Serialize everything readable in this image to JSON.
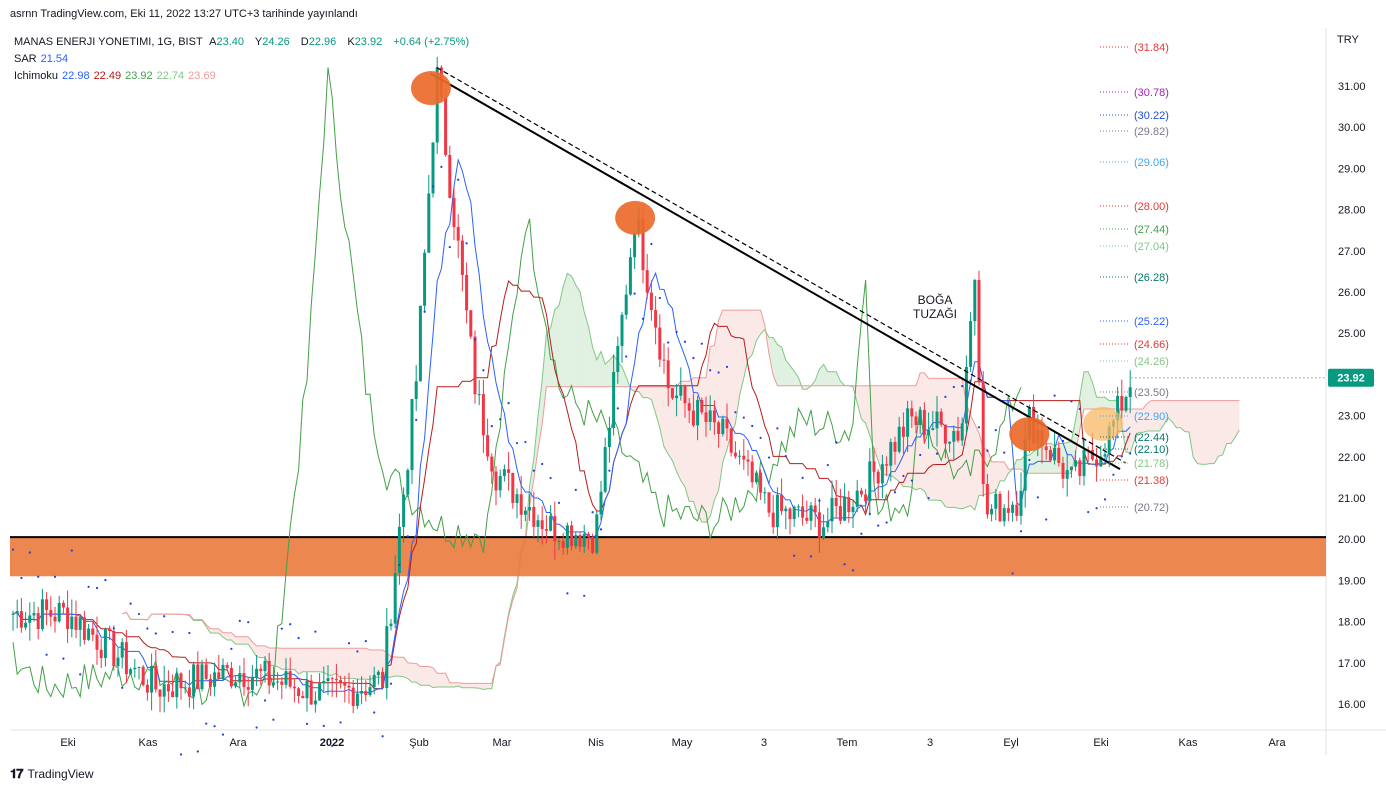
{
  "header": {
    "published": "asrnn TradingView.com, Eki 11, 2022 13:27 UTC+3 tarihinde yayınlandı"
  },
  "legend": {
    "symbol": "MANAS ENERJI YONETIMI, 1G, BIST",
    "ohlc": {
      "A": "23.40",
      "Y": "24.26",
      "D": "22.96",
      "K": "23.92",
      "change": "+0.64 (+2.75%)"
    },
    "indicators": [
      {
        "name": "SAR",
        "values": [
          "21.54"
        ],
        "colors": [
          "#2962ff"
        ]
      },
      {
        "name": "Ichimoku",
        "values": [
          "22.98",
          "22.49",
          "23.92",
          "22.74",
          "23.69"
        ],
        "colors": [
          "#2962ff",
          "#b71c1c",
          "#43a047",
          "#81c784",
          "#ef9a9a"
        ]
      }
    ]
  },
  "axis": {
    "currency": "TRY",
    "y_ticks": [
      "31.00",
      "30.00",
      "29.00",
      "28.00",
      "27.00",
      "26.00",
      "25.00",
      "24.00",
      "23.00",
      "22.00",
      "21.00",
      "20.00",
      "19.00",
      "18.00",
      "17.00",
      "16.00"
    ],
    "x_ticks": [
      "Eki",
      "Kas",
      "Ara",
      "2022",
      "Şub",
      "Mar",
      "Nis",
      "May",
      "3",
      "Tem",
      "3",
      "Eyl",
      "Eki",
      "Kas",
      "Ara"
    ]
  },
  "price_labels": [
    {
      "value": "(31.84)",
      "color": "#e53935"
    },
    {
      "value": "(30.78)",
      "color": "#9c27b0"
    },
    {
      "value": "(30.22)",
      "color": "#1e4fd8"
    },
    {
      "value": "(29.82)",
      "color": "#787b86"
    },
    {
      "value": "(29.06)",
      "color": "#42a5f5"
    },
    {
      "value": "(28.00)",
      "color": "#e53935"
    },
    {
      "value": "(27.44)",
      "color": "#43a047"
    },
    {
      "value": "(27.04)",
      "color": "#81c784"
    },
    {
      "value": "(26.28)",
      "color": "#00796b"
    },
    {
      "value": "(25.22)",
      "color": "#2962ff"
    },
    {
      "value": "(24.66)",
      "color": "#e53935"
    },
    {
      "value": "(24.26)",
      "color": "#81c784"
    },
    {
      "value": "(23.50)",
      "color": "#787b86"
    },
    {
      "value": "(22.90)",
      "color": "#42a5f5"
    },
    {
      "value": "(22.44)",
      "color": "#00796b"
    },
    {
      "value": "(22.10)",
      "color": "#00796b"
    },
    {
      "value": "(21.78)",
      "color": "#81c784"
    },
    {
      "value": "(21.38)",
      "color": "#e53935"
    },
    {
      "value": "(20.72)",
      "color": "#787b86"
    }
  ],
  "last_price": {
    "value": "23.92",
    "color": "#089981"
  },
  "annotation": {
    "line1": "BOĞA",
    "line2": "TUZAĞI"
  },
  "colors": {
    "up": "#089981",
    "down": "#f23645",
    "zone": "#ea7a3c",
    "marker": "#ea6a2a",
    "marker_soft": "#f8b866"
  },
  "footer": {
    "brand": "TradingView"
  },
  "chart_data": {
    "type": "candlestick",
    "ylim": [
      15.4,
      32.1
    ],
    "support_zone": [
      19.1,
      20.05
    ],
    "support_line": 20.05,
    "last": 23.92,
    "key_points": [
      {
        "date": "2021-10-01",
        "close": 18.2
      },
      {
        "date": "2021-11-01",
        "close": 16.4
      },
      {
        "date": "2021-12-01",
        "close": 16.8
      },
      {
        "date": "2022-01-01",
        "close": 16.2
      },
      {
        "date": "2022-01-20",
        "close": 16.6
      },
      {
        "date": "2022-02-01",
        "close": 24.0
      },
      {
        "date": "2022-02-08",
        "close": 31.3
      },
      {
        "date": "2022-02-22",
        "close": 23.5
      },
      {
        "date": "2022-03-01",
        "close": 21.6
      },
      {
        "date": "2022-03-20",
        "close": 20.3
      },
      {
        "date": "2022-04-05",
        "close": 20.1
      },
      {
        "date": "2022-04-19",
        "close": 27.9
      },
      {
        "date": "2022-05-01",
        "close": 23.6
      },
      {
        "date": "2022-05-20",
        "close": 22.5
      },
      {
        "date": "2022-06-05",
        "close": 20.7
      },
      {
        "date": "2022-06-25",
        "close": 20.4
      },
      {
        "date": "2022-07-10",
        "close": 21.4
      },
      {
        "date": "2022-07-25",
        "close": 22.9
      },
      {
        "date": "2022-08-12",
        "close": 22.6
      },
      {
        "date": "2022-08-17",
        "close": 26.9
      },
      {
        "date": "2022-08-20",
        "close": 20.6
      },
      {
        "date": "2022-09-01",
        "close": 21.0
      },
      {
        "date": "2022-09-05",
        "close": 22.9
      },
      {
        "date": "2022-09-20",
        "close": 21.4
      },
      {
        "date": "2022-10-03",
        "close": 22.5
      },
      {
        "date": "2022-10-11",
        "close": 23.92
      }
    ],
    "trendlines": [
      {
        "start": {
          "date": "2022-02-06",
          "price": 31.3
        },
        "end": {
          "date": "2022-10-07",
          "price": 21.7
        }
      },
      {
        "start": {
          "date": "2022-02-08",
          "price": 31.45
        },
        "end": {
          "date": "2022-10-09",
          "price": 21.85
        }
      }
    ],
    "markers": [
      {
        "date": "2022-02-06",
        "price": 30.95
      },
      {
        "date": "2022-04-19",
        "price": 27.8
      },
      {
        "date": "2022-09-05",
        "price": 22.55
      },
      {
        "date": "2022-10-01",
        "price": 22.8,
        "soft": true
      }
    ]
  }
}
